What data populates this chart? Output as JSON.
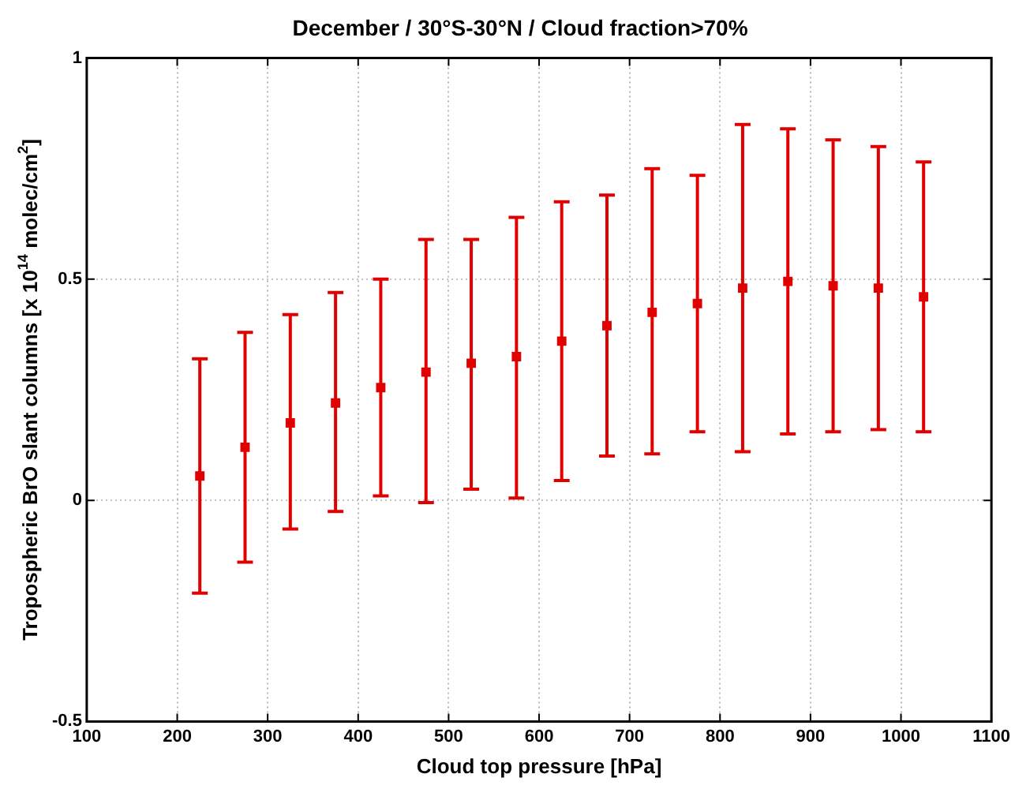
{
  "chart_data": {
    "type": "scatter",
    "title": "December / 30°S-30°N / Cloud fraction>70%",
    "xlabel": "Cloud top pressure [hPa]",
    "ylabel": "Tropospheric BrO slant columns [x 10$^{14}$ molec/cm$^{2}$]",
    "x": [
      225,
      275,
      325,
      375,
      425,
      475,
      525,
      575,
      625,
      675,
      725,
      775,
      825,
      875,
      925,
      975,
      1025
    ],
    "series": [
      {
        "color": "#e00000",
        "values": [
          0.055,
          0.12,
          0.175,
          0.22,
          0.255,
          0.29,
          0.31,
          0.325,
          0.36,
          0.395,
          0.425,
          0.445,
          0.48,
          0.495,
          0.485,
          0.48,
          0.46
        ],
        "errors": [
          [
            -0.21,
            0.32
          ],
          [
            -0.14,
            0.38
          ],
          [
            -0.065,
            0.42
          ],
          [
            -0.025,
            0.47
          ],
          [
            0.01,
            0.5
          ],
          [
            -0.005,
            0.59
          ],
          [
            0.025,
            0.59
          ],
          [
            0.005,
            0.64
          ],
          [
            0.045,
            0.675
          ],
          [
            0.1,
            0.69
          ],
          [
            0.105,
            0.75
          ],
          [
            0.155,
            0.735
          ],
          [
            0.11,
            0.85
          ],
          [
            0.15,
            0.84
          ],
          [
            0.155,
            0.815
          ],
          [
            0.16,
            0.8
          ],
          [
            0.155,
            0.765
          ]
        ]
      }
    ],
    "xlim": [
      100,
      1100
    ],
    "xticks": [
      100,
      200,
      300,
      400,
      500,
      600,
      700,
      800,
      900,
      1000,
      1100
    ],
    "ylim": [
      -0.5,
      1
    ],
    "yticks": [
      -0.5,
      0,
      0.5,
      1
    ],
    "grid": true,
    "legend": false,
    "marker": "square"
  }
}
